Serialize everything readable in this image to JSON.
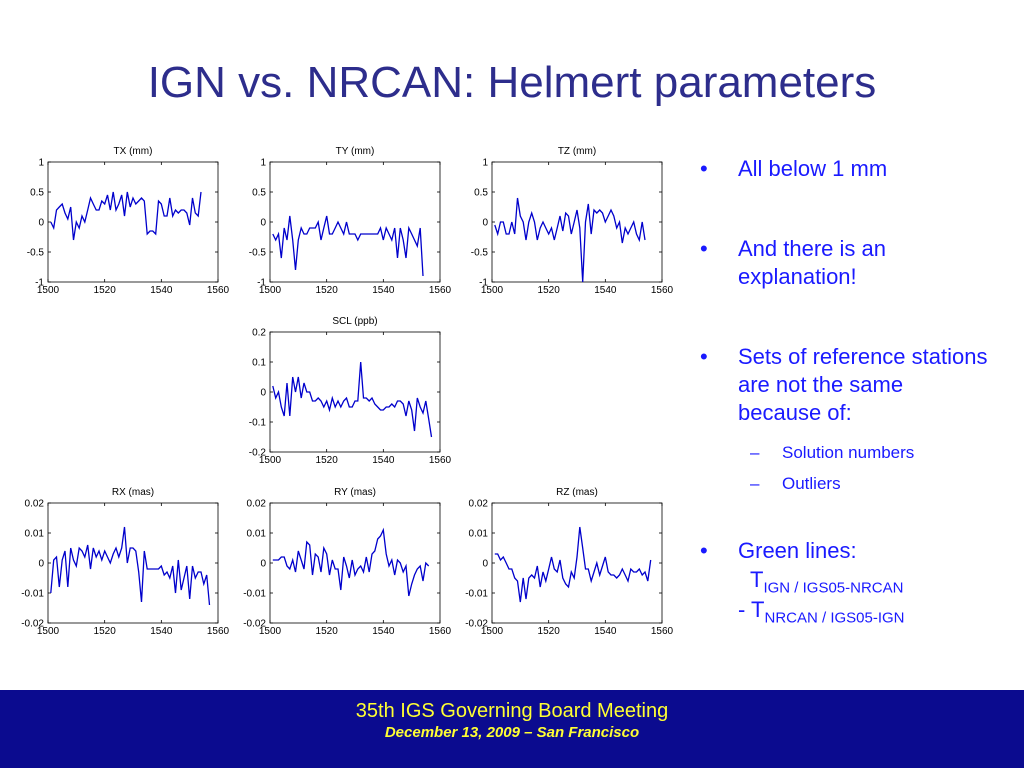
{
  "slide": {
    "title": "IGN vs. NRCAN: Helmert parameters"
  },
  "bullets": [
    {
      "text": "All below 1 mm"
    },
    {
      "text": "And there is an explanation!"
    },
    {
      "text": "Sets of reference stations are not the same because of:",
      "subitems": [
        "Solution numbers",
        "Outliers"
      ]
    },
    {
      "text": "Green lines:"
    }
  ],
  "green_lines": {
    "line1_T": "T",
    "line1_sub": "IGN / IGS05-NRCAN",
    "line2_prefix": "- T",
    "line2_sub": "NRCAN / IGS05-IGN"
  },
  "footer": {
    "line1": "35th IGS Governing Board Meeting",
    "line2": "December 13, 2009 – San Francisco"
  },
  "colors": {
    "title": "#2d2d8c",
    "series": "#0000cc",
    "footer_bg": "#0b0b8f",
    "footer_text": "#ffff33",
    "bullet_text": "#1a1aff"
  },
  "chart_data": [
    {
      "id": "tx",
      "type": "line",
      "title": "TX (mm)",
      "xlim": [
        1500,
        1560
      ],
      "ylim": [
        -1,
        1
      ],
      "xticks": [
        1500,
        1520,
        1540,
        1560
      ],
      "ytick_labels": [
        "1",
        "0.5",
        "0",
        "-0.5",
        "-1"
      ],
      "yticks": [
        1,
        0.5,
        0,
        -0.5,
        -1
      ],
      "x_start": 1501,
      "x_step": 1,
      "values": [
        0.0,
        -0.1,
        0.2,
        0.25,
        0.3,
        0.15,
        0.05,
        0.25,
        -0.3,
        0.0,
        -0.1,
        0.1,
        0.0,
        0.2,
        0.4,
        0.3,
        0.2,
        0.2,
        0.35,
        0.3,
        0.45,
        0.2,
        0.5,
        0.2,
        0.3,
        0.45,
        0.1,
        0.5,
        0.25,
        0.4,
        0.3,
        0.35,
        0.4,
        0.35,
        -0.2,
        -0.15,
        -0.15,
        -0.2,
        0.35,
        0.3,
        0.1,
        0.1,
        0.4,
        0.1,
        0.2,
        0.15,
        0.2,
        0.2,
        0.15,
        -0.05,
        0.4,
        0.15,
        0.1,
        0.5
      ]
    },
    {
      "id": "ty",
      "type": "line",
      "title": "TY (mm)",
      "xlim": [
        1500,
        1560
      ],
      "ylim": [
        -1,
        1
      ],
      "xticks": [
        1500,
        1520,
        1540,
        1560
      ],
      "ytick_labels": [
        "1",
        "0.5",
        "0",
        "-0.5",
        "-1"
      ],
      "yticks": [
        1,
        0.5,
        0,
        -0.5,
        -1
      ],
      "x_start": 1501,
      "x_step": 1,
      "values": [
        -0.2,
        -0.3,
        -0.2,
        -0.6,
        -0.1,
        -0.3,
        0.1,
        -0.3,
        -0.8,
        -0.3,
        -0.1,
        -0.2,
        -0.2,
        -0.1,
        -0.1,
        -0.1,
        0.0,
        -0.3,
        -0.1,
        0.1,
        -0.2,
        -0.2,
        -0.1,
        0.0,
        -0.1,
        -0.2,
        0.0,
        -0.2,
        -0.2,
        -0.2,
        -0.3,
        -0.2,
        -0.2,
        -0.2,
        -0.2,
        -0.2,
        -0.2,
        -0.2,
        -0.1,
        -0.3,
        -0.1,
        -0.2,
        -0.3,
        -0.1,
        -0.6,
        -0.1,
        -0.3,
        -0.6,
        -0.1,
        -0.2,
        -0.3,
        -0.4,
        -0.1,
        -0.9
      ]
    },
    {
      "id": "tz",
      "type": "line",
      "title": "TZ (mm)",
      "xlim": [
        1500,
        1560
      ],
      "ylim": [
        -1,
        1
      ],
      "xticks": [
        1500,
        1520,
        1540,
        1560
      ],
      "ytick_labels": [
        "1",
        "0.5",
        "0",
        "-0.5",
        "-1"
      ],
      "yticks": [
        1,
        0.5,
        0,
        -0.5,
        -1
      ],
      "x_start": 1501,
      "x_step": 1,
      "values": [
        -0.05,
        -0.2,
        0.0,
        0.0,
        -0.2,
        -0.2,
        0.0,
        -0.2,
        0.4,
        0.1,
        0.0,
        -0.3,
        0.0,
        0.15,
        0.0,
        -0.3,
        -0.1,
        0.0,
        -0.1,
        -0.2,
        -0.1,
        -0.3,
        -0.1,
        0.1,
        -0.15,
        0.15,
        0.1,
        -0.2,
        0.0,
        0.2,
        -0.1,
        -1.0,
        0.0,
        0.3,
        -0.2,
        0.2,
        0.15,
        0.2,
        0.15,
        0.0,
        0.1,
        0.2,
        0.1,
        -0.1,
        0.0,
        -0.35,
        -0.1,
        -0.2,
        -0.1,
        0.0,
        -0.2,
        -0.3,
        0.0,
        -0.3
      ]
    },
    {
      "id": "scl",
      "type": "line",
      "title": "SCL (ppb)",
      "xlim": [
        1500,
        1560
      ],
      "ylim": [
        -0.2,
        0.2
      ],
      "xticks": [
        1500,
        1520,
        1540,
        1560
      ],
      "ytick_labels": [
        "0.2",
        "0.1",
        "0",
        "-0.1",
        "-0.2"
      ],
      "yticks": [
        0.2,
        0.1,
        0,
        -0.1,
        -0.2
      ],
      "x_start": 1501,
      "x_step": 1,
      "values": [
        0.02,
        -0.02,
        0.0,
        -0.05,
        -0.08,
        0.03,
        -0.08,
        0.05,
        0.0,
        0.05,
        -0.02,
        0.03,
        0.0,
        0.0,
        -0.03,
        -0.03,
        -0.02,
        -0.03,
        -0.05,
        -0.03,
        -0.06,
        -0.02,
        -0.05,
        -0.03,
        -0.05,
        -0.03,
        -0.02,
        -0.05,
        -0.05,
        -0.03,
        -0.03,
        0.1,
        -0.02,
        -0.02,
        -0.03,
        -0.02,
        -0.04,
        -0.05,
        -0.06,
        -0.06,
        -0.05,
        -0.05,
        -0.04,
        -0.05,
        -0.03,
        -0.03,
        -0.04,
        -0.08,
        -0.03,
        -0.06,
        -0.13,
        -0.02,
        -0.05,
        -0.07,
        -0.03,
        -0.09,
        -0.15
      ]
    },
    {
      "id": "rx",
      "type": "line",
      "title": "RX (mas)",
      "xlim": [
        1500,
        1560
      ],
      "ylim": [
        -0.02,
        0.02
      ],
      "xticks": [
        1500,
        1520,
        1540,
        1560
      ],
      "ytick_labels": [
        "0.02",
        "0.01",
        "0",
        "-0.01",
        "-0.02"
      ],
      "yticks": [
        0.02,
        0.01,
        0,
        -0.01,
        -0.02
      ],
      "x_start": 1501,
      "x_step": 1,
      "values": [
        -0.01,
        0.001,
        0.002,
        -0.008,
        0.001,
        0.004,
        -0.008,
        0.005,
        0.001,
        -0.001,
        0.005,
        0.004,
        0.002,
        0.006,
        -0.002,
        0.005,
        0.002,
        0.004,
        0.001,
        0.004,
        0.002,
        0.0,
        0.003,
        0.005,
        0.002,
        0.005,
        0.012,
        0.0,
        0.005,
        0.005,
        0.004,
        -0.003,
        -0.013,
        0.004,
        -0.002,
        -0.002,
        -0.002,
        -0.002,
        -0.002,
        -0.001,
        -0.004,
        -0.003,
        -0.005,
        -0.001,
        -0.01,
        0.001,
        -0.009,
        -0.005,
        -0.001,
        -0.012,
        -0.001,
        -0.005,
        -0.003,
        -0.003,
        -0.007,
        -0.004,
        -0.014
      ]
    },
    {
      "id": "ry",
      "type": "line",
      "title": "RY (mas)",
      "xlim": [
        1500,
        1560
      ],
      "ylim": [
        -0.02,
        0.02
      ],
      "xticks": [
        1500,
        1520,
        1540,
        1560
      ],
      "ytick_labels": [
        "0.02",
        "0.01",
        "0",
        "-0.01",
        "-0.02"
      ],
      "yticks": [
        0.02,
        0.01,
        0,
        -0.01,
        -0.02
      ],
      "x_start": 1501,
      "x_step": 1,
      "values": [
        0.001,
        0.001,
        0.001,
        0.002,
        0.002,
        -0.001,
        -0.002,
        0.001,
        -0.003,
        0.004,
        0.001,
        -0.002,
        0.007,
        0.006,
        -0.004,
        0.003,
        0.002,
        -0.003,
        0.005,
        0.003,
        -0.004,
        0.001,
        -0.002,
        -0.002,
        -0.009,
        0.002,
        -0.001,
        -0.005,
        0.001,
        -0.004,
        -0.002,
        -0.001,
        -0.003,
        0.002,
        -0.003,
        0.003,
        0.004,
        0.008,
        0.009,
        0.011,
        0.003,
        -0.001,
        0.001,
        -0.004,
        0.001,
        0.0,
        -0.003,
        -0.001,
        -0.011,
        -0.007,
        -0.004,
        -0.002,
        -0.001,
        -0.006,
        0.0,
        -0.001
      ]
    },
    {
      "id": "rz",
      "type": "line",
      "title": "RZ (mas)",
      "xlim": [
        1500,
        1560
      ],
      "ylim": [
        -0.02,
        0.02
      ],
      "xticks": [
        1500,
        1520,
        1540,
        1560
      ],
      "ytick_labels": [
        "0.02",
        "0.01",
        "0",
        "-0.01",
        "-0.02"
      ],
      "yticks": [
        0.02,
        0.01,
        0,
        -0.01,
        -0.02
      ],
      "x_start": 1501,
      "x_step": 1,
      "values": [
        0.003,
        0.003,
        0.001,
        0.002,
        0.0,
        -0.002,
        -0.002,
        -0.005,
        -0.006,
        -0.013,
        -0.005,
        -0.012,
        -0.005,
        -0.004,
        -0.005,
        -0.001,
        -0.008,
        -0.003,
        -0.006,
        -0.002,
        0.002,
        -0.002,
        -0.003,
        0.001,
        -0.005,
        -0.007,
        -0.008,
        -0.003,
        -0.005,
        0.002,
        0.012,
        0.005,
        -0.002,
        -0.002,
        -0.006,
        -0.003,
        0.0,
        -0.004,
        -0.001,
        0.002,
        -0.003,
        -0.004,
        -0.004,
        -0.005,
        -0.004,
        -0.002,
        -0.004,
        -0.006,
        -0.002,
        -0.003,
        -0.003,
        -0.002,
        -0.004,
        -0.003,
        -0.006,
        0.001
      ]
    }
  ]
}
